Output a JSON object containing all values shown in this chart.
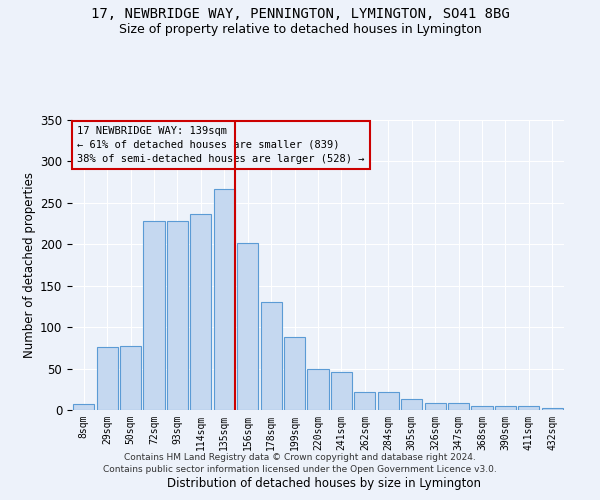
{
  "title1": "17, NEWBRIDGE WAY, PENNINGTON, LYMINGTON, SO41 8BG",
  "title2": "Size of property relative to detached houses in Lymington",
  "xlabel": "Distribution of detached houses by size in Lymington",
  "ylabel": "Number of detached properties",
  "categories": [
    "8sqm",
    "29sqm",
    "50sqm",
    "72sqm",
    "93sqm",
    "114sqm",
    "135sqm",
    "156sqm",
    "178sqm",
    "199sqm",
    "220sqm",
    "241sqm",
    "262sqm",
    "284sqm",
    "305sqm",
    "326sqm",
    "347sqm",
    "368sqm",
    "390sqm",
    "411sqm",
    "432sqm"
  ],
  "values": [
    7,
    76,
    77,
    228,
    228,
    236,
    267,
    201,
    130,
    88,
    49,
    46,
    22,
    22,
    13,
    9,
    9,
    5,
    5,
    5,
    2
  ],
  "bar_color": "#c5d8f0",
  "bar_edge_color": "#5b9bd5",
  "vline_x_index": 6,
  "vline_color": "#cc0000",
  "annotation_title": "17 NEWBRIDGE WAY: 139sqm",
  "annotation_line1": "← 61% of detached houses are smaller (839)",
  "annotation_line2": "38% of semi-detached houses are larger (528) →",
  "annotation_box_color": "#cc0000",
  "footer1": "Contains HM Land Registry data © Crown copyright and database right 2024.",
  "footer2": "Contains public sector information licensed under the Open Government Licence v3.0.",
  "ylim": [
    0,
    350
  ],
  "yticks": [
    0,
    50,
    100,
    150,
    200,
    250,
    300,
    350
  ],
  "background_color": "#edf2fa",
  "title_fontsize": 10,
  "subtitle_fontsize": 9,
  "grid_color": "#ffffff"
}
